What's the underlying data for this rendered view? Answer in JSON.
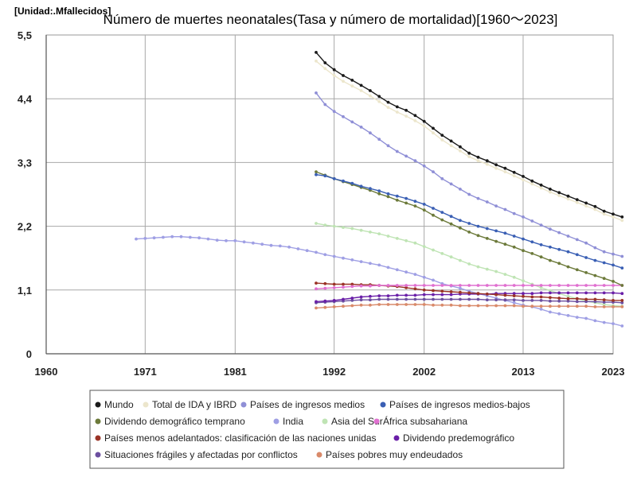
{
  "chart_data": {
    "type": "line",
    "title": "Número de muertes neonatales(Tasa y número de mortalidad)[1960～2023]",
    "unit_label": "[Unidad:.Mfallecidos]",
    "xlabel": "",
    "ylabel": "",
    "x_ticks": [
      "1960",
      "1971",
      "1981",
      "1992",
      "2002",
      "2013",
      "2023"
    ],
    "y_ticks": [
      "0",
      "1,1",
      "2,2",
      "3,3",
      "4,4",
      "5,5"
    ],
    "xlim": [
      1960,
      2023
    ],
    "ylim": [
      0,
      5.5
    ],
    "grid": true,
    "legend_position": "bottom",
    "series": [
      {
        "name": "Mundo",
        "color": "#1a1a1a",
        "x_start": 1990,
        "values": [
          5.2,
          5.02,
          4.9,
          4.8,
          4.72,
          4.63,
          4.54,
          4.44,
          4.34,
          4.26,
          4.2,
          4.11,
          4.01,
          3.89,
          3.77,
          3.67,
          3.57,
          3.46,
          3.39,
          3.33,
          3.26,
          3.2,
          3.13,
          3.06,
          2.98,
          2.91,
          2.84,
          2.78,
          2.72,
          2.66,
          2.6,
          2.54,
          2.46,
          2.41,
          2.36
        ]
      },
      {
        "name": "Total de IDA y IBRD",
        "color": "#ece6cc",
        "x_start": 1990,
        "values": [
          5.05,
          4.92,
          4.8,
          4.7,
          4.62,
          4.54,
          4.45,
          4.35,
          4.25,
          4.17,
          4.1,
          4.02,
          3.93,
          3.81,
          3.69,
          3.59,
          3.5,
          3.4,
          3.33,
          3.27,
          3.2,
          3.14,
          3.07,
          3.0,
          2.93,
          2.86,
          2.79,
          2.73,
          2.67,
          2.61,
          2.55,
          2.49,
          2.41,
          2.36,
          2.3
        ]
      },
      {
        "name": "Países de ingresos medios",
        "color": "#8f8fd6",
        "x_start": 1990,
        "values": [
          4.5,
          4.3,
          4.18,
          4.09,
          4.0,
          3.91,
          3.81,
          3.7,
          3.59,
          3.49,
          3.41,
          3.33,
          3.24,
          3.14,
          3.02,
          2.93,
          2.84,
          2.75,
          2.68,
          2.62,
          2.55,
          2.49,
          2.42,
          2.36,
          2.29,
          2.22,
          2.15,
          2.09,
          2.03,
          1.97,
          1.91,
          1.83,
          1.76,
          1.72,
          1.68
        ]
      },
      {
        "name": "Países de ingresos medios-bajos",
        "color": "#3a5fb4",
        "x_start": 1990,
        "values": [
          3.09,
          3.07,
          3.02,
          2.98,
          2.94,
          2.89,
          2.85,
          2.81,
          2.76,
          2.72,
          2.68,
          2.63,
          2.58,
          2.51,
          2.44,
          2.37,
          2.3,
          2.25,
          2.2,
          2.16,
          2.12,
          2.08,
          2.03,
          1.98,
          1.93,
          1.88,
          1.84,
          1.8,
          1.76,
          1.71,
          1.66,
          1.61,
          1.57,
          1.53,
          1.48
        ]
      },
      {
        "name": "Dividendo demográfico temprano",
        "color": "#6c7a3a",
        "x_start": 1990,
        "values": [
          3.14,
          3.08,
          3.02,
          2.97,
          2.92,
          2.87,
          2.82,
          2.76,
          2.71,
          2.65,
          2.6,
          2.55,
          2.48,
          2.39,
          2.31,
          2.24,
          2.17,
          2.1,
          2.04,
          1.99,
          1.94,
          1.89,
          1.84,
          1.78,
          1.73,
          1.67,
          1.61,
          1.56,
          1.5,
          1.45,
          1.4,
          1.35,
          1.3,
          1.25,
          1.18
        ]
      },
      {
        "name": "India",
        "color": "#9f9fe4",
        "x_start": 1970,
        "values": [
          1.98,
          1.99,
          2.0,
          2.01,
          2.02,
          2.02,
          2.01,
          2.0,
          1.98,
          1.96,
          1.95,
          1.95,
          1.93,
          1.91,
          1.89,
          1.87,
          1.86,
          1.84,
          1.81,
          1.78,
          1.75,
          1.71,
          1.68,
          1.65,
          1.62,
          1.59,
          1.56,
          1.53,
          1.49,
          1.45,
          1.41,
          1.37,
          1.32,
          1.27,
          1.21,
          1.17,
          1.13,
          1.08,
          1.04,
          1.0,
          0.96,
          0.92,
          0.88,
          0.84,
          0.81,
          0.77,
          0.72,
          0.69,
          0.66,
          0.63,
          0.61,
          0.57,
          0.54,
          0.52,
          0.48
        ]
      },
      {
        "name": "Asia del Sur",
        "color": "#bfe4b4",
        "x_start": 1990,
        "values": [
          2.25,
          2.22,
          2.2,
          2.18,
          2.16,
          2.13,
          2.1,
          2.07,
          2.03,
          1.99,
          1.95,
          1.91,
          1.85,
          1.79,
          1.73,
          1.67,
          1.61,
          1.55,
          1.5,
          1.46,
          1.42,
          1.37,
          1.32,
          1.26,
          1.2,
          1.14,
          1.09,
          1.04,
          0.99,
          0.95,
          0.91,
          0.88,
          0.85,
          0.83,
          0.82
        ]
      },
      {
        "name": "África subsahariana",
        "color": "#e070d0",
        "x_start": 1990,
        "values": [
          1.12,
          1.13,
          1.14,
          1.15,
          1.16,
          1.17,
          1.17,
          1.18,
          1.18,
          1.18,
          1.18,
          1.18,
          1.18,
          1.18,
          1.18,
          1.18,
          1.18,
          1.18,
          1.18,
          1.18,
          1.18,
          1.18,
          1.18,
          1.18,
          1.18,
          1.18,
          1.18,
          1.18,
          1.18,
          1.18,
          1.18,
          1.18,
          1.18,
          1.18,
          1.18
        ]
      },
      {
        "name": "Países menos adelantados: clasificación de las naciones unidas",
        "color": "#9a3326",
        "x_start": 1990,
        "values": [
          1.22,
          1.21,
          1.2,
          1.2,
          1.2,
          1.19,
          1.19,
          1.18,
          1.17,
          1.16,
          1.14,
          1.12,
          1.1,
          1.09,
          1.08,
          1.07,
          1.06,
          1.05,
          1.04,
          1.03,
          1.02,
          1.01,
          1.0,
          0.99,
          0.98,
          0.98,
          0.97,
          0.96,
          0.95,
          0.95,
          0.94,
          0.94,
          0.93,
          0.92,
          0.92
        ]
      },
      {
        "name": "Dividendo predemográfico",
        "color": "#6a1fa8",
        "x_start": 1990,
        "values": [
          0.9,
          0.91,
          0.92,
          0.94,
          0.96,
          0.98,
          0.99,
          1.0,
          1.0,
          1.01,
          1.01,
          1.01,
          1.02,
          1.02,
          1.02,
          1.02,
          1.03,
          1.03,
          1.03,
          1.03,
          1.04,
          1.04,
          1.04,
          1.04,
          1.04,
          1.05,
          1.05,
          1.05,
          1.05,
          1.05,
          1.05,
          1.05,
          1.05,
          1.05,
          1.04
        ]
      },
      {
        "name": "Situaciones frágiles y afectadas por conflictos",
        "color": "#6c4fa0",
        "x_start": 1990,
        "values": [
          0.88,
          0.89,
          0.9,
          0.91,
          0.92,
          0.93,
          0.93,
          0.94,
          0.94,
          0.94,
          0.94,
          0.94,
          0.94,
          0.94,
          0.94,
          0.94,
          0.94,
          0.94,
          0.94,
          0.93,
          0.93,
          0.93,
          0.93,
          0.92,
          0.92,
          0.92,
          0.91,
          0.91,
          0.91,
          0.9,
          0.9,
          0.9,
          0.89,
          0.89,
          0.88
        ]
      },
      {
        "name": "Países pobres muy endeudados",
        "color": "#d98a6a",
        "x_start": 1990,
        "values": [
          0.79,
          0.8,
          0.81,
          0.82,
          0.83,
          0.84,
          0.84,
          0.85,
          0.85,
          0.85,
          0.85,
          0.85,
          0.85,
          0.84,
          0.84,
          0.84,
          0.83,
          0.83,
          0.83,
          0.83,
          0.83,
          0.83,
          0.83,
          0.82,
          0.82,
          0.82,
          0.82,
          0.82,
          0.82,
          0.82,
          0.82,
          0.81,
          0.81,
          0.81,
          0.81
        ]
      }
    ]
  }
}
